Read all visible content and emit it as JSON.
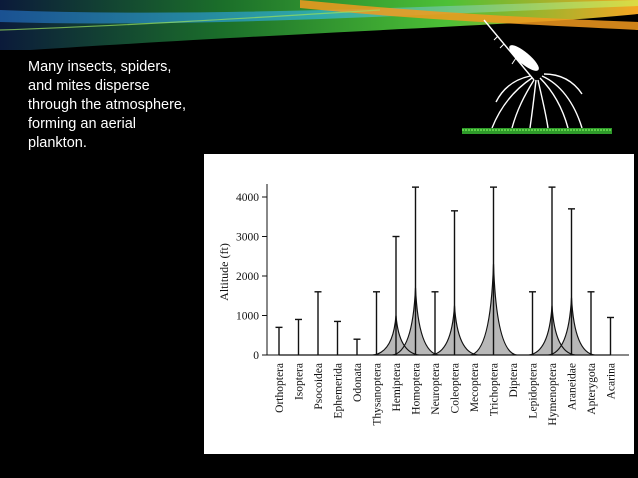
{
  "slide": {
    "text": "Many insects, spiders, and mites disperse through the atmosphere, forming an aerial plankton."
  },
  "colors": {
    "background": "#000000",
    "banner_green": "#3fae3a",
    "banner_orange": "#f29a1f",
    "fill_gray": "#b8b8b8",
    "line": "#111111"
  },
  "chart_data": {
    "type": "line",
    "title": "",
    "xlabel": "",
    "ylabel": "Altitude (ft)",
    "ylim": [
      0,
      4500
    ],
    "yticks": [
      0,
      1000,
      2000,
      3000,
      4000
    ],
    "categories": [
      "Orthoptera",
      "Isoptera",
      "Psocoidea",
      "Ephemerida",
      "Odonata",
      "Thysanoptera",
      "Hemiptera",
      "Homoptera",
      "Neuroptera",
      "Coleoptera",
      "Mecoptera",
      "Trichoptera",
      "Diptera",
      "Lepidoptera",
      "Hymenoptera",
      "Araneidae",
      "Apterygota",
      "Acarina"
    ],
    "max_altitude": [
      700,
      900,
      1600,
      850,
      400,
      1600,
      3000,
      4250,
      1600,
      3650,
      0,
      4250,
      0,
      1600,
      4250,
      3700,
      1600,
      950
    ],
    "series": [
      {
        "values": [
          0,
          0,
          0,
          0,
          0,
          0,
          1000,
          1700,
          0,
          1250,
          0,
          2300,
          0,
          0,
          1250,
          1450,
          0,
          0
        ]
      }
    ]
  }
}
